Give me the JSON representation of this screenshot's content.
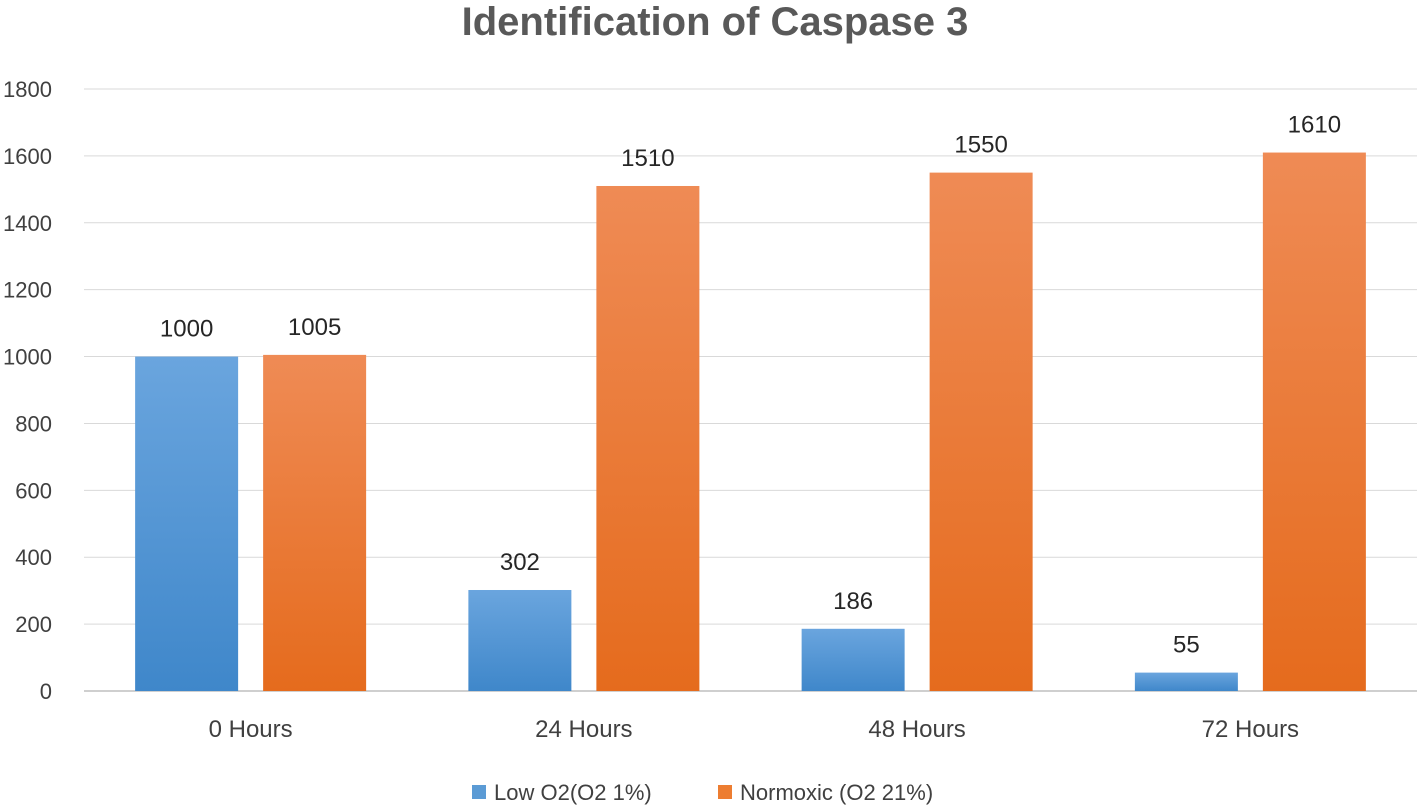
{
  "chart_data": {
    "type": "bar",
    "title": "Identification of Caspase 3",
    "xlabel": "",
    "ylabel": "",
    "categories": [
      "0 Hours",
      "24 Hours",
      "48 Hours",
      "72 Hours"
    ],
    "series": [
      {
        "name": "Low O2(O2 1%)",
        "values": [
          1000,
          302,
          186,
          55
        ],
        "color": "#5B9BD5"
      },
      {
        "name": "Normoxic (O2 21%)",
        "values": [
          1005,
          1510,
          1550,
          1610
        ],
        "color": "#ED7D31"
      }
    ],
    "ylim": [
      0,
      1800
    ],
    "yticks": [
      0,
      200,
      400,
      600,
      800,
      1000,
      1200,
      1400,
      1600,
      1800
    ],
    "grid": true,
    "legend_position": "bottom",
    "data_labels": true
  }
}
